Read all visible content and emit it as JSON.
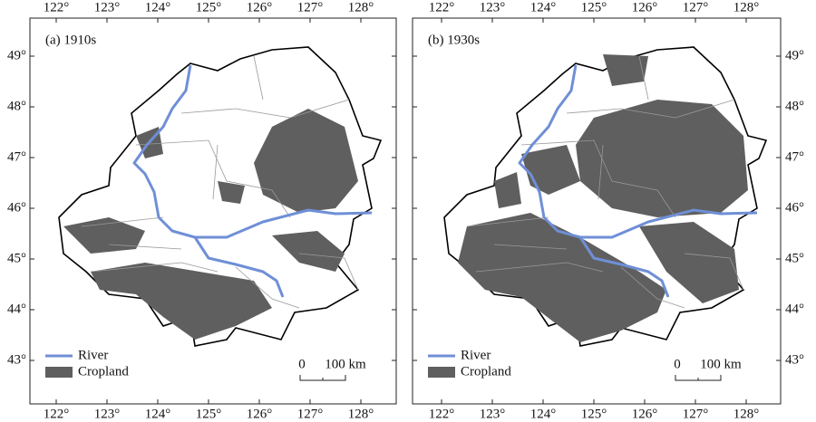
{
  "panels": [
    {
      "label": "(a) 1910s",
      "legend": {
        "river": "River",
        "cropland": "Cropland"
      },
      "scale": {
        "start": "0",
        "end": "100 km"
      }
    },
    {
      "label": "(b) 1930s",
      "legend": {
        "river": "River",
        "cropland": "Cropland"
      },
      "scale": {
        "start": "0",
        "end": "100 km"
      }
    }
  ],
  "longitude_ticks": [
    "122°",
    "123°",
    "124°",
    "125°",
    "126°",
    "127°",
    "128°"
  ],
  "latitude_ticks": [
    "49°",
    "48°",
    "47°",
    "46°",
    "45°",
    "44°",
    "43°"
  ]
}
